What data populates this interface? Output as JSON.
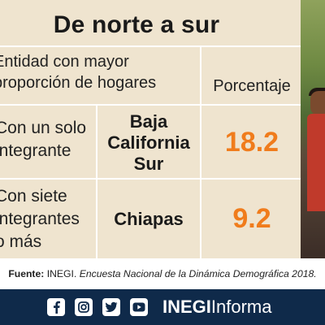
{
  "infographic": {
    "title": "De norte a sur",
    "header": {
      "left_line1": "Entidad con mayor",
      "left_line2": "proporción de hogares",
      "right": "Porcentaje"
    },
    "rows": [
      {
        "label_lines": [
          "Con un solo",
          "integrante"
        ],
        "state_lines": [
          "Baja",
          "California",
          "Sur"
        ],
        "value": "18.2"
      },
      {
        "label_lines": [
          "Con siete",
          "integrantes",
          "o más"
        ],
        "state_lines": [
          "Chiapas"
        ],
        "value": "9.2"
      }
    ],
    "source": {
      "label": "Fuente:",
      "org": "INEGI.",
      "work": "Encuesta Nacional de la Dinámica Demográfica 2018."
    }
  },
  "footer": {
    "social_icons": [
      "facebook-icon",
      "instagram-icon",
      "twitter-icon",
      "youtube-icon"
    ],
    "brand_bold": "INEGI",
    "brand_regular": "Informa"
  },
  "colors": {
    "panel_bg": "#efe4cf",
    "value_orange": "#f07c1c",
    "footer_navy": "#0f2a4a"
  }
}
